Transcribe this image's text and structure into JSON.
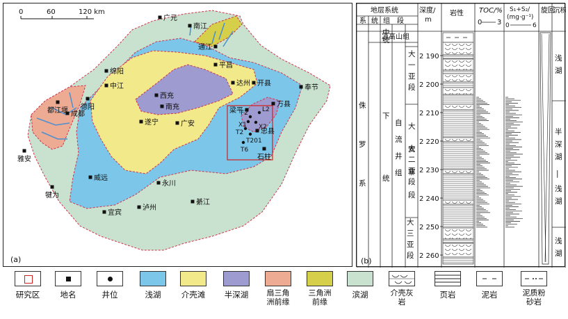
{
  "map": {
    "panel_label": "(a)",
    "scale": {
      "t0": "0",
      "t60": "60",
      "t120": "120 km"
    },
    "places": {
      "guangyuan": "广元",
      "nanjiang": "南江",
      "tongjiang": "通江",
      "pingchang": "平昌",
      "mianyang": "绵阳",
      "zhongjiang": "中江",
      "xichong": "西充",
      "nanchong": "南充",
      "dazhou": "达州",
      "kaixian": "开县",
      "fengjie": "奉节",
      "dujiangyan": "都江堰",
      "deyang": "德阳",
      "chengdu": "成都",
      "suining": "遂宁",
      "guangan": "广安",
      "wanxian": "万县",
      "liangping": "梁平",
      "zhongxian": "忠县",
      "shizhu": "石柱",
      "yaan": "雅安",
      "weiyuan": "威远",
      "yongchuan": "永川",
      "qianwei": "犍为",
      "yibin": "宜宾",
      "luzhou": "泸州",
      "qijiang": "綦江"
    },
    "wells": {
      "f2": "F2",
      "l2": "L2",
      "x1": "X1",
      "x2": "X2",
      "t2": "T2",
      "t201": "T201",
      "t6": "T6"
    }
  },
  "column": {
    "panel_label": "(b)",
    "headers": {
      "strat_system": "地层系统",
      "xi": "系",
      "tong": "统",
      "zu": "组",
      "duan": "段",
      "depth": "深度/",
      "depth_unit": "m",
      "lithology": "岩性",
      "toc": "TOC/%",
      "toc_min": "0",
      "toc_max": "3",
      "s1s2": "S₁+S₂/",
      "s1s2_unit": "(mg·g⁻¹)",
      "s1s2_min": "0",
      "s1s2_max": "6",
      "cycle": "旋回",
      "facies": "沉积相"
    },
    "system": "侏罗系",
    "series_mid": "中统",
    "series_low": "下统",
    "formation_upper": "凉高山组",
    "formation": "自流井组",
    "member": "大安寨段",
    "submembers": [
      "大一亚段",
      "大二亚段",
      "大三亚段"
    ],
    "depth_ticks": [
      "2 190",
      "2 200",
      "2 210",
      "2 220",
      "2 230",
      "2 240",
      "2 250",
      "2 260"
    ],
    "facies": [
      "浅湖",
      "半深湖—浅湖",
      "浅湖"
    ]
  },
  "legend": [
    {
      "label": "研究区",
      "icon": "red-square-outline"
    },
    {
      "label": "地名",
      "icon": "black-square"
    },
    {
      "label": "井位",
      "icon": "black-dot"
    },
    {
      "label": "浅湖",
      "color": "#7cc6ea"
    },
    {
      "label": "介壳滩",
      "color": "#f2e98a"
    },
    {
      "label": "半深湖",
      "color": "#9d9bcf"
    },
    {
      "label": "扇三角洲前缘",
      "color": "#eeab94"
    },
    {
      "label": "三角洲前缘",
      "color": "#d6cf4a"
    },
    {
      "label": "滨湖",
      "color": "#c9e2cf"
    },
    {
      "label": "介壳灰岩",
      "icon": "shell-limestone"
    },
    {
      "label": "页岩",
      "icon": "shale"
    },
    {
      "label": "泥岩",
      "icon": "mudstone"
    },
    {
      "label": "泥质粉砂岩",
      "icon": "muddy-siltstone"
    }
  ]
}
